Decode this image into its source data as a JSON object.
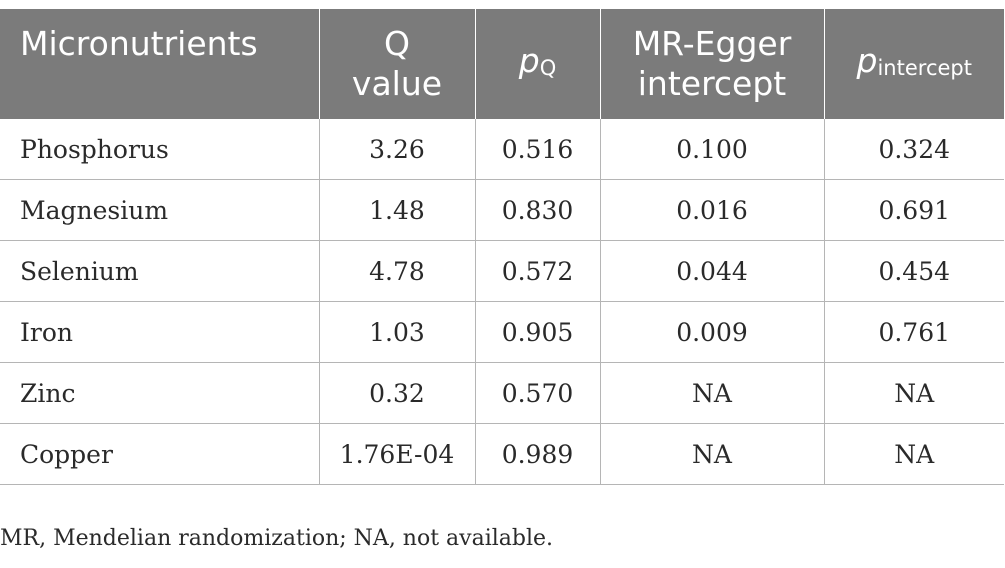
{
  "table": {
    "headers": {
      "micronutrients": "Micronutrients",
      "q_value": "Q value",
      "p_q_symbol": "p",
      "p_q_sub": "Q",
      "mr_egger": "MR-Egger intercept",
      "p_int_symbol": "p",
      "p_int_sub": "intercept"
    },
    "rows": [
      {
        "name": "Phosphorus",
        "q": "3.26",
        "pq": "0.516",
        "egger": "0.100",
        "pint": "0.324"
      },
      {
        "name": "Magnesium",
        "q": "1.48",
        "pq": "0.830",
        "egger": "0.016",
        "pint": "0.691"
      },
      {
        "name": "Selenium",
        "q": "4.78",
        "pq": "0.572",
        "egger": "0.044",
        "pint": "0.454"
      },
      {
        "name": "Iron",
        "q": "1.03",
        "pq": "0.905",
        "egger": "0.009",
        "pint": "0.761"
      },
      {
        "name": "Zinc",
        "q": "0.32",
        "pq": "0.570",
        "egger": "NA",
        "pint": "NA"
      },
      {
        "name": "Copper",
        "q": "1.76E-04",
        "pq": "0.989",
        "egger": "NA",
        "pint": "NA"
      }
    ]
  },
  "footnote": "MR, Mendelian randomization; NA, not available.",
  "colors": {
    "header_bg": "#7b7b7b",
    "header_text": "#ffffff",
    "grid": "#b5b5b5"
  }
}
